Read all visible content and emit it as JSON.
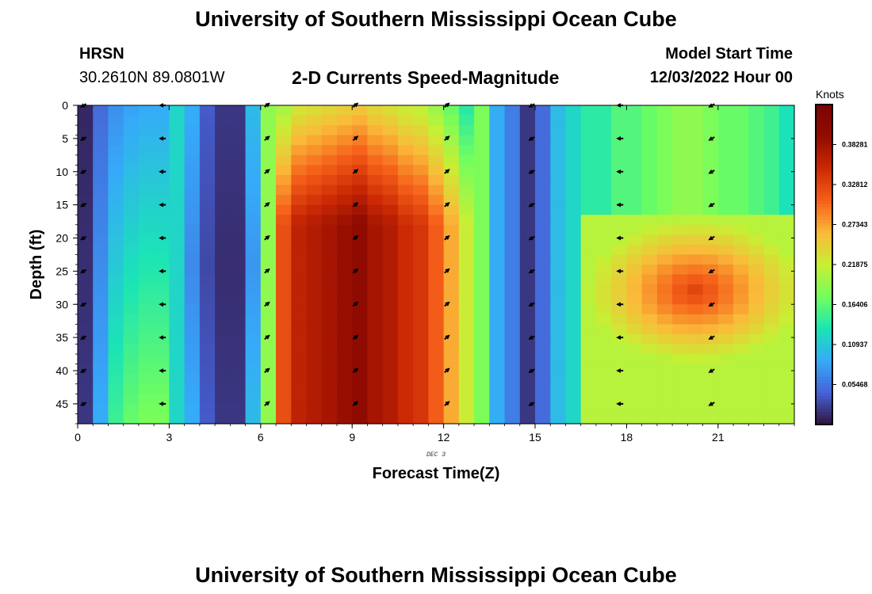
{
  "header": {
    "title": "University of Southern Mississippi Ocean Cube",
    "station": "HRSN",
    "coords": "30.2610N  89.0801W",
    "chart_title": "2-D Currents Speed-Magnitude",
    "model_label": "Model Start Time",
    "model_time": "12/03/2022 Hour 00"
  },
  "footer": {
    "title": "University of Southern Mississippi Ocean Cube"
  },
  "chart_data": {
    "type": "heatmap",
    "title": "2-D Currents Speed-Magnitude",
    "xlabel": "Forecast Time(Z)",
    "ylabel": "Depth (ft)",
    "date_label": "DEC 3",
    "xlim": [
      0,
      23.5
    ],
    "ylim": [
      48,
      0
    ],
    "x_ticks": [
      0,
      3,
      6,
      9,
      12,
      15,
      18,
      21
    ],
    "y_ticks": [
      0,
      5,
      10,
      15,
      20,
      25,
      30,
      35,
      40,
      45
    ],
    "hours": [
      0,
      0.5,
      1,
      1.5,
      2,
      2.5,
      3,
      3.5,
      4,
      4.5,
      5,
      5.5,
      6,
      6.5,
      7,
      7.5,
      8,
      8.5,
      9,
      9.5,
      10,
      10.5,
      11,
      11.5,
      12,
      12.5,
      13,
      13.5,
      14,
      14.5,
      15,
      15.5,
      16,
      16.5,
      17,
      17.5,
      18,
      18.5,
      19,
      19.5,
      20,
      20.5,
      21,
      21.5,
      22,
      22.5,
      23
    ],
    "column_speed_profile": [
      0.02,
      0.09,
      0.13,
      0.15,
      0.16,
      0.16,
      0.12,
      0.09,
      0.04,
      0.02,
      0.02,
      0.1,
      0.19,
      0.32,
      0.36,
      0.37,
      0.38,
      0.39,
      0.4,
      0.38,
      0.37,
      0.35,
      0.34,
      0.31,
      0.27,
      0.22,
      0.18,
      0.09,
      0.06,
      0.02,
      0.05,
      0.1,
      0.12,
      0.14,
      0.14,
      0.16,
      0.16,
      0.17,
      0.18,
      0.19,
      0.19,
      0.18,
      0.17,
      0.17,
      0.16,
      0.15,
      0.13
    ],
    "subsurface_core": {
      "depth_from_ft": 17,
      "depth_to_ft": 48,
      "hour_from": 16.5,
      "hour_to": 23,
      "peak_hour": 20,
      "peak_depth_ft": 28,
      "peak_knots": 0.33
    },
    "vector_hours": [
      0.2,
      2.8,
      6.2,
      9.1,
      12.1,
      14.9,
      17.8,
      20.8
    ],
    "vector_depths": [
      0,
      5,
      10,
      15,
      20,
      25,
      30,
      35,
      40,
      45
    ],
    "vector_directions": [
      "SW",
      "W",
      "NE",
      "NE",
      "NE",
      "SW",
      "W",
      "SW"
    ],
    "colorbar": {
      "label": "Knots",
      "range": [
        0,
        0.4375
      ],
      "ticks": [
        0.38281,
        0.32812,
        0.27343,
        0.21875,
        0.16406,
        0.10937,
        0.05468
      ],
      "tick_labels": [
        "0.38281",
        "0.32812",
        "0.27343",
        "0.21875",
        "0.16406",
        "0.10937",
        "0.05468"
      ]
    },
    "colors": {
      "low": "#30123b",
      "mid_low": "#4662d7",
      "mid": "#1ae4b6",
      "mid_high": "#a4fc3c",
      "high": "#fb8022",
      "top": "#7a0403"
    }
  }
}
